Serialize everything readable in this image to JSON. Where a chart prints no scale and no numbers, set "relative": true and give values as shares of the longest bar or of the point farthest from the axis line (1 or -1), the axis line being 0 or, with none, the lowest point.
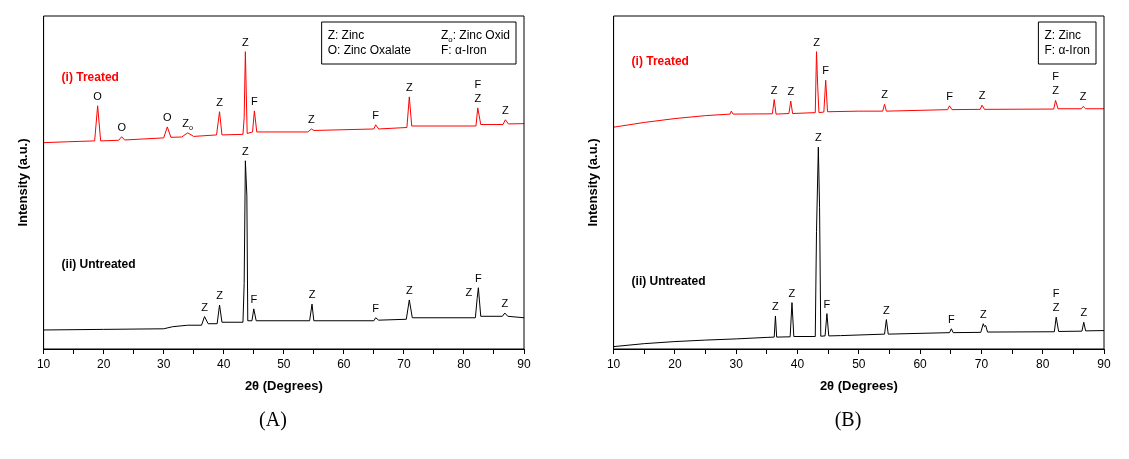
{
  "chart_data": [
    {
      "type": "line",
      "title": "(A)",
      "xlabel": "2θ (Degrees)",
      "ylabel": "Intensity (a.u.)",
      "relative": true,
      "xlim": [
        10,
        90
      ],
      "xticks": [
        10,
        {
          "value": 15,
          "label": null
        },
        20,
        {
          "value": 25,
          "label": null
        },
        30,
        {
          "value": 35,
          "label": null
        },
        40,
        {
          "value": 45,
          "label": null
        },
        50,
        {
          "value": 55,
          "label": null
        },
        60,
        {
          "value": 65,
          "label": null
        },
        70,
        {
          "value": 75,
          "label": null
        },
        80,
        {
          "value": 85,
          "label": null
        },
        90
      ],
      "series": [
        {
          "name": "(i) Treated",
          "color": "#ff0000",
          "x": [
            10,
            14,
            18.5,
            19,
            19.5,
            22.5,
            23,
            23.5,
            30,
            30.6,
            31.2,
            33,
            34,
            35,
            38.8,
            39.3,
            39.7,
            43.2,
            43.4,
            43.6,
            43.9,
            44.8,
            45.1,
            45.5,
            54,
            54.6,
            55,
            65,
            65.3,
            65.8,
            70.5,
            70.9,
            71.3,
            82,
            82.3,
            82.8,
            86.5,
            86.9,
            87.4,
            90
          ],
          "values": [
            0.694,
            0.697,
            0.7,
            0.818,
            0.7,
            0.702,
            0.714,
            0.703,
            0.71,
            0.747,
            0.712,
            0.713,
            0.727,
            0.715,
            0.72,
            0.798,
            0.72,
            0.722,
            0.778,
            1.0,
            0.725,
            0.73,
            0.801,
            0.73,
            0.73,
            0.74,
            0.735,
            0.74,
            0.754,
            0.74,
            0.745,
            0.848,
            0.75,
            0.75,
            0.811,
            0.755,
            0.755,
            0.771,
            0.757,
            0.758
          ]
        },
        {
          "name": "(ii) Untreated",
          "color": "#000000",
          "x": [
            10,
            20,
            30,
            31.5,
            34,
            36.3,
            36.8,
            37.4,
            38.9,
            39.3,
            39.7,
            43.2,
            43.4,
            43.6,
            43.85,
            44.0,
            44.7,
            45.0,
            45.4,
            54.3,
            54.7,
            55.0,
            65,
            65.3,
            65.8,
            70.4,
            70.9,
            71.4,
            81.9,
            82.2,
            82.4,
            82.8,
            86.4,
            86.8,
            87.3,
            90
          ],
          "values": [
            0.064,
            0.066,
            0.068,
            0.075,
            0.08,
            0.08,
            0.109,
            0.085,
            0.085,
            0.148,
            0.09,
            0.09,
            0.22,
            0.633,
            0.515,
            0.095,
            0.095,
            0.135,
            0.095,
            0.095,
            0.151,
            0.095,
            0.095,
            0.105,
            0.097,
            0.1,
            0.165,
            0.105,
            0.105,
            0.17,
            0.206,
            0.11,
            0.11,
            0.121,
            0.11,
            0.105
          ]
        }
      ],
      "annotations": [
        "Z: Zinc",
        "Z$_{o}$: Zinc Oxid",
        "O: Zinc Oxalate",
        "F: α-Iron",
        {
          "text": "O",
          "x": 19.0,
          "y": 0.818
        },
        {
          "text": "O",
          "x": 23.0,
          "y": 0.714
        },
        {
          "text": "O",
          "x": 30.6,
          "y": 0.747
        },
        {
          "text": "Z$_{o}$",
          "x": 34.0,
          "y": 0.727
        },
        {
          "text": "Z",
          "x": 39.3,
          "y": 0.798
        },
        {
          "text": "Z",
          "x": 43.6,
          "y": 1.0
        },
        {
          "text": "F",
          "x": 45.1,
          "y": 0.801
        },
        {
          "text": "Z",
          "x": 54.6,
          "y": 0.74
        },
        {
          "text": "F",
          "x": 65.3,
          "y": 0.754
        },
        {
          "text": "Z",
          "x": 70.9,
          "y": 0.848
        },
        {
          "text": "Z",
          "x": 82.3,
          "y": 0.811
        },
        {
          "text": "F",
          "x": 82.3,
          "y": 0.811
        },
        {
          "text": "Z",
          "x": 86.9,
          "y": 0.771
        },
        {
          "text": "Z",
          "x": 36.8,
          "y": 0.109
        },
        {
          "text": "Z",
          "x": 39.3,
          "y": 0.148
        },
        {
          "text": "Z",
          "x": 43.6,
          "y": 0.633
        },
        {
          "text": "F",
          "x": 45.0,
          "y": 0.135
        },
        {
          "text": "Z",
          "x": 54.7,
          "y": 0.151
        },
        {
          "text": "F",
          "x": 65.3,
          "y": 0.105
        },
        {
          "text": "Z",
          "x": 70.9,
          "y": 0.165
        },
        {
          "text": "Z",
          "x": 82.2,
          "y": 0.17
        },
        {
          "text": "F",
          "x": 82.4,
          "y": 0.206
        },
        {
          "text": "Z",
          "x": 86.8,
          "y": 0.121
        }
      ]
    },
    {
      "type": "line",
      "title": "(B)",
      "xlabel": "2θ (Degrees)",
      "ylabel": "Intensity (a.u.)",
      "relative": true,
      "xlim": [
        10,
        90
      ],
      "xticks": [
        10,
        {
          "value": 15,
          "label": null
        },
        20,
        {
          "value": 25,
          "label": null
        },
        30,
        {
          "value": 35,
          "label": null
        },
        40,
        {
          "value": 45,
          "label": null
        },
        50,
        {
          "value": 55,
          "label": null
        },
        60,
        {
          "value": 65,
          "label": null
        },
        70,
        {
          "value": 75,
          "label": null
        },
        80,
        {
          "value": 85,
          "label": null
        },
        90
      ],
      "series": [
        {
          "name": "(i) Treated",
          "color": "#ff0000",
          "x": [
            10,
            15,
            20,
            25,
            29,
            29.2,
            29.5,
            35.9,
            36.2,
            36.5,
            38.6,
            38.9,
            39.2,
            42.9,
            43.1,
            43.3,
            43.5,
            44.3,
            44.6,
            44.9,
            50,
            53.9,
            54.2,
            54.5,
            64.5,
            64.8,
            65.2,
            69.8,
            70.1,
            70.5,
            81.8,
            82.1,
            82.5,
            86.3,
            86.6,
            87,
            90
          ],
          "values": [
            0.746,
            0.762,
            0.775,
            0.785,
            0.79,
            0.8,
            0.79,
            0.791,
            0.839,
            0.79,
            0.792,
            0.834,
            0.792,
            0.795,
            1.0,
            0.882,
            0.795,
            0.797,
            0.904,
            0.798,
            0.8,
            0.8,
            0.823,
            0.8,
            0.805,
            0.818,
            0.805,
            0.806,
            0.82,
            0.806,
            0.807,
            0.836,
            0.808,
            0.808,
            0.816,
            0.808,
            0.808
          ]
        },
        {
          "name": "(ii) Untreated",
          "color": "#000000",
          "x": [
            10,
            15,
            20,
            25,
            30,
            35,
            36.2,
            36.4,
            36.6,
            38.8,
            39.1,
            39.4,
            42.9,
            43.1,
            43.4,
            43.6,
            43.8,
            44.5,
            44.8,
            45.1,
            47,
            54.2,
            54.5,
            54.8,
            64.8,
            65.1,
            65.4,
            69.9,
            70.3,
            70.5,
            70.7,
            71,
            81.9,
            82.2,
            82.6,
            86.4,
            86.7,
            87,
            90
          ],
          "values": [
            0.008,
            0.018,
            0.025,
            0.03,
            0.034,
            0.039,
            0.04,
            0.111,
            0.04,
            0.041,
            0.156,
            0.042,
            0.042,
            0.396,
            0.679,
            0.475,
            0.043,
            0.044,
            0.119,
            0.044,
            0.045,
            0.05,
            0.099,
            0.05,
            0.055,
            0.068,
            0.055,
            0.056,
            0.085,
            0.075,
            0.079,
            0.057,
            0.058,
            0.107,
            0.059,
            0.06,
            0.09,
            0.061,
            0.062
          ]
        }
      ],
      "annotations": [
        "Z: Zinc",
        "F: α-Iron",
        {
          "text": "Z",
          "x": 36.2,
          "y": 0.839
        },
        {
          "text": "Z",
          "x": 38.9,
          "y": 0.834
        },
        {
          "text": "Z",
          "x": 43.1,
          "y": 1.0
        },
        {
          "text": "F",
          "x": 44.6,
          "y": 0.904
        },
        {
          "text": "Z",
          "x": 54.2,
          "y": 0.823
        },
        {
          "text": "F",
          "x": 64.8,
          "y": 0.818
        },
        {
          "text": "Z",
          "x": 70.1,
          "y": 0.82
        },
        {
          "text": "Z",
          "x": 82.1,
          "y": 0.836
        },
        {
          "text": "F",
          "x": 82.1,
          "y": 0.836
        },
        {
          "text": "Z",
          "x": 86.6,
          "y": 0.816
        },
        {
          "text": "Z",
          "x": 36.4,
          "y": 0.111
        },
        {
          "text": "Z",
          "x": 39.1,
          "y": 0.156
        },
        {
          "text": "Z",
          "x": 43.4,
          "y": 0.679
        },
        {
          "text": "F",
          "x": 44.8,
          "y": 0.119
        },
        {
          "text": "Z",
          "x": 54.5,
          "y": 0.099
        },
        {
          "text": "F",
          "x": 65.1,
          "y": 0.068
        },
        {
          "text": "Z",
          "x": 70.3,
          "y": 0.085
        },
        {
          "text": "Z",
          "x": 82.2,
          "y": 0.107
        },
        {
          "text": "F",
          "x": 82.2,
          "y": 0.107
        },
        {
          "text": "Z",
          "x": 86.7,
          "y": 0.09
        }
      ]
    }
  ]
}
